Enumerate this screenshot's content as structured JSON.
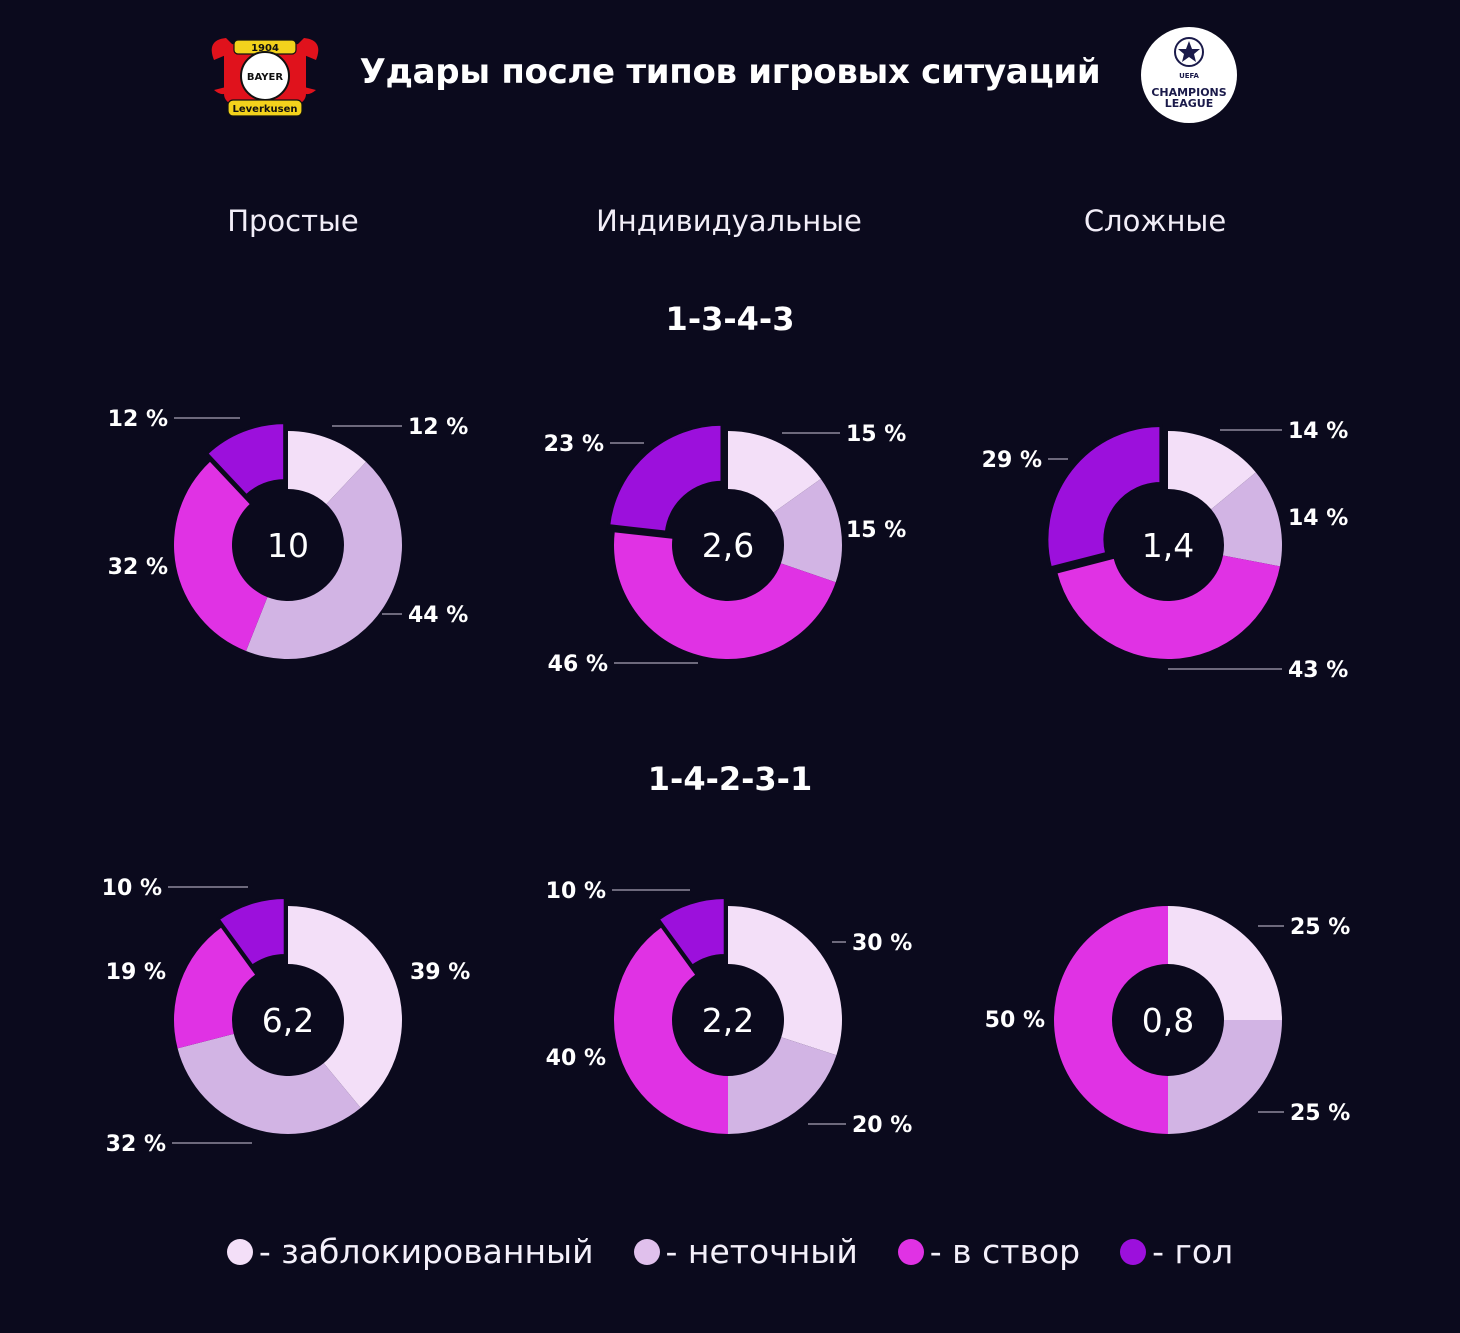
{
  "title": "Удары после типов игровых ситуаций",
  "logos": {
    "left": "Bayer 04 Leverkusen crest",
    "left_text": [
      "1904",
      "BAYER",
      "Leverkusen"
    ],
    "right": "UEFA Champions League logo",
    "right_text": [
      "UEFA",
      "CHAMPIONS",
      "LEAGUE"
    ]
  },
  "columns": [
    "Простые",
    "Индивидуальные",
    "Сложные"
  ],
  "formations": [
    "1-3-4-3",
    "1-4-2-3-1"
  ],
  "colors": {
    "blocked": "#f3dff8",
    "inaccurate": "#d2b4e4",
    "on_target": "#e032e4",
    "goal": "#9c10dc",
    "background": "#0b0a1d",
    "leader": "#cfc8dc"
  },
  "legend": [
    {
      "label": "- заблокированный",
      "color": "#f3dff8"
    },
    {
      "label": "- неточный",
      "color": "#e0c0ec"
    },
    {
      "label": "- в створ",
      "color": "#e032e4"
    },
    {
      "label": "- гол",
      "color": "#9c10dc"
    }
  ],
  "chart_data": [
    {
      "type": "pie",
      "formation": "1-3-4-3",
      "column": "Простые",
      "center_value": "10",
      "categories": [
        "заблокированный",
        "неточный",
        "в створ",
        "гол"
      ],
      "values": [
        12,
        44,
        32,
        12
      ],
      "labels": [
        "12 %",
        "44 %",
        "32 %",
        "12 %"
      ]
    },
    {
      "type": "pie",
      "formation": "1-3-4-3",
      "column": "Индивидуальные",
      "center_value": "2,6",
      "categories": [
        "заблокированный",
        "неточный",
        "в створ",
        "гол"
      ],
      "values": [
        15,
        15,
        46,
        23
      ],
      "labels": [
        "15 %",
        "15 %",
        "46 %",
        "23 %"
      ]
    },
    {
      "type": "pie",
      "formation": "1-3-4-3",
      "column": "Сложные",
      "center_value": "1,4",
      "categories": [
        "заблокированный",
        "неточный",
        "в створ",
        "гол"
      ],
      "values": [
        14,
        14,
        43,
        29
      ],
      "labels": [
        "14 %",
        "14 %",
        "43 %",
        "29 %"
      ]
    },
    {
      "type": "pie",
      "formation": "1-4-2-3-1",
      "column": "Простые",
      "center_value": "6,2",
      "categories": [
        "заблокированный",
        "неточный",
        "в створ",
        "гол"
      ],
      "values": [
        39,
        32,
        19,
        10
      ],
      "labels": [
        "39 %",
        "32 %",
        "19 %",
        "10 %"
      ]
    },
    {
      "type": "pie",
      "formation": "1-4-2-3-1",
      "column": "Индивидуальные",
      "center_value": "2,2",
      "categories": [
        "заблокированный",
        "неточный",
        "в створ",
        "гол"
      ],
      "values": [
        30,
        20,
        40,
        10
      ],
      "labels": [
        "30 %",
        "20 %",
        "40 %",
        "10 %"
      ]
    },
    {
      "type": "pie",
      "formation": "1-4-2-3-1",
      "column": "Сложные",
      "center_value": "0,8",
      "categories": [
        "заблокированный",
        "неточный",
        "в створ",
        "гол"
      ],
      "values": [
        25,
        25,
        50,
        0
      ],
      "labels": [
        "25 %",
        "25 %",
        "50 %",
        ""
      ]
    }
  ]
}
